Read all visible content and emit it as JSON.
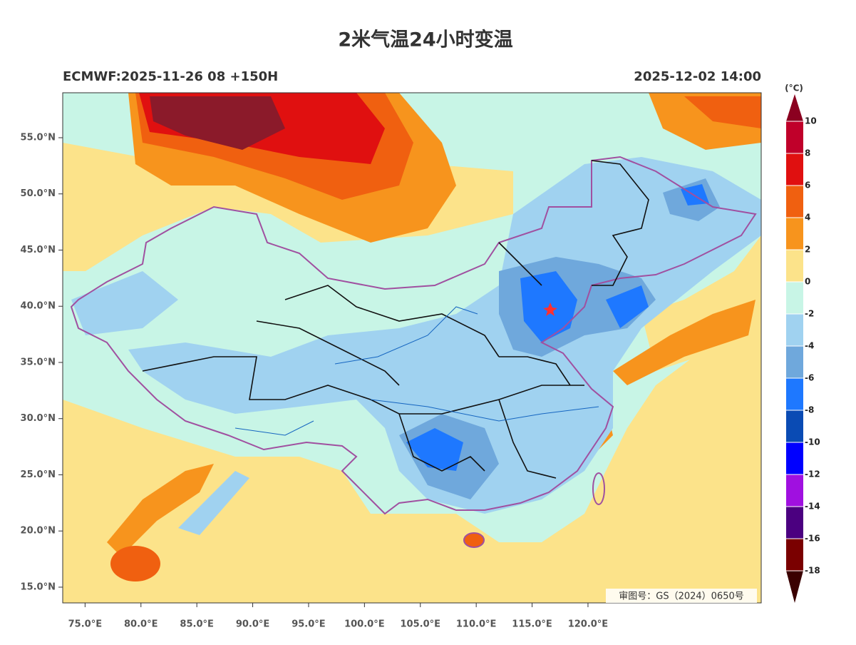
{
  "title": "2米气温24小时变温",
  "model_run": "ECMWF:2025-11-26 08 +150H",
  "valid_time": "2025-12-02 14:00",
  "map": {
    "lonlim": [
      73,
      135.5
    ],
    "latlim": [
      13.6,
      59
    ],
    "lat_ticks": [
      {
        "value": 55,
        "label": "55.0°N"
      },
      {
        "value": 50,
        "label": "50.0°N"
      },
      {
        "value": 45,
        "label": "45.0°N"
      },
      {
        "value": 40,
        "label": "40.0°N"
      },
      {
        "value": 35,
        "label": "35.0°N"
      },
      {
        "value": 30,
        "label": "30.0°N"
      },
      {
        "value": 25,
        "label": "25.0°N"
      },
      {
        "value": 20,
        "label": "20.0°N"
      },
      {
        "value": 15,
        "label": "15.0°N"
      }
    ],
    "lon_ticks": [
      {
        "value": 75,
        "label": "75.0°E"
      },
      {
        "value": 80,
        "label": "80.0°E"
      },
      {
        "value": 85,
        "label": "85.0°E"
      },
      {
        "value": 90,
        "label": "90.0°E"
      },
      {
        "value": 95,
        "label": "95.0°E"
      },
      {
        "value": 100,
        "label": "100.0°E"
      },
      {
        "value": 105,
        "label": "105.0°E"
      },
      {
        "value": 110,
        "label": "110.0°E"
      },
      {
        "value": 115,
        "label": "115.0°E"
      },
      {
        "value": 120,
        "label": "120.0°E"
      }
    ]
  },
  "colorbar": {
    "unit": "(°C)",
    "levels": [
      -18,
      -16,
      -14,
      -12,
      -10,
      -8,
      -6,
      -4,
      -2,
      0,
      2,
      4,
      6,
      8,
      10
    ],
    "colors": [
      "#7a0000",
      "#4b0080",
      "#a010e0",
      "#0000ff",
      "#0a4bb4",
      "#1e78ff",
      "#6fa8dc",
      "#a0d2f0",
      "#c8f5e6",
      "#fce38a",
      "#f7941d",
      "#f06010",
      "#e01010",
      "#c0002a"
    ],
    "under_color": "#3a0000",
    "over_color": "#8b0020"
  },
  "approval_number": "审图号：GS（2024）0650号"
}
